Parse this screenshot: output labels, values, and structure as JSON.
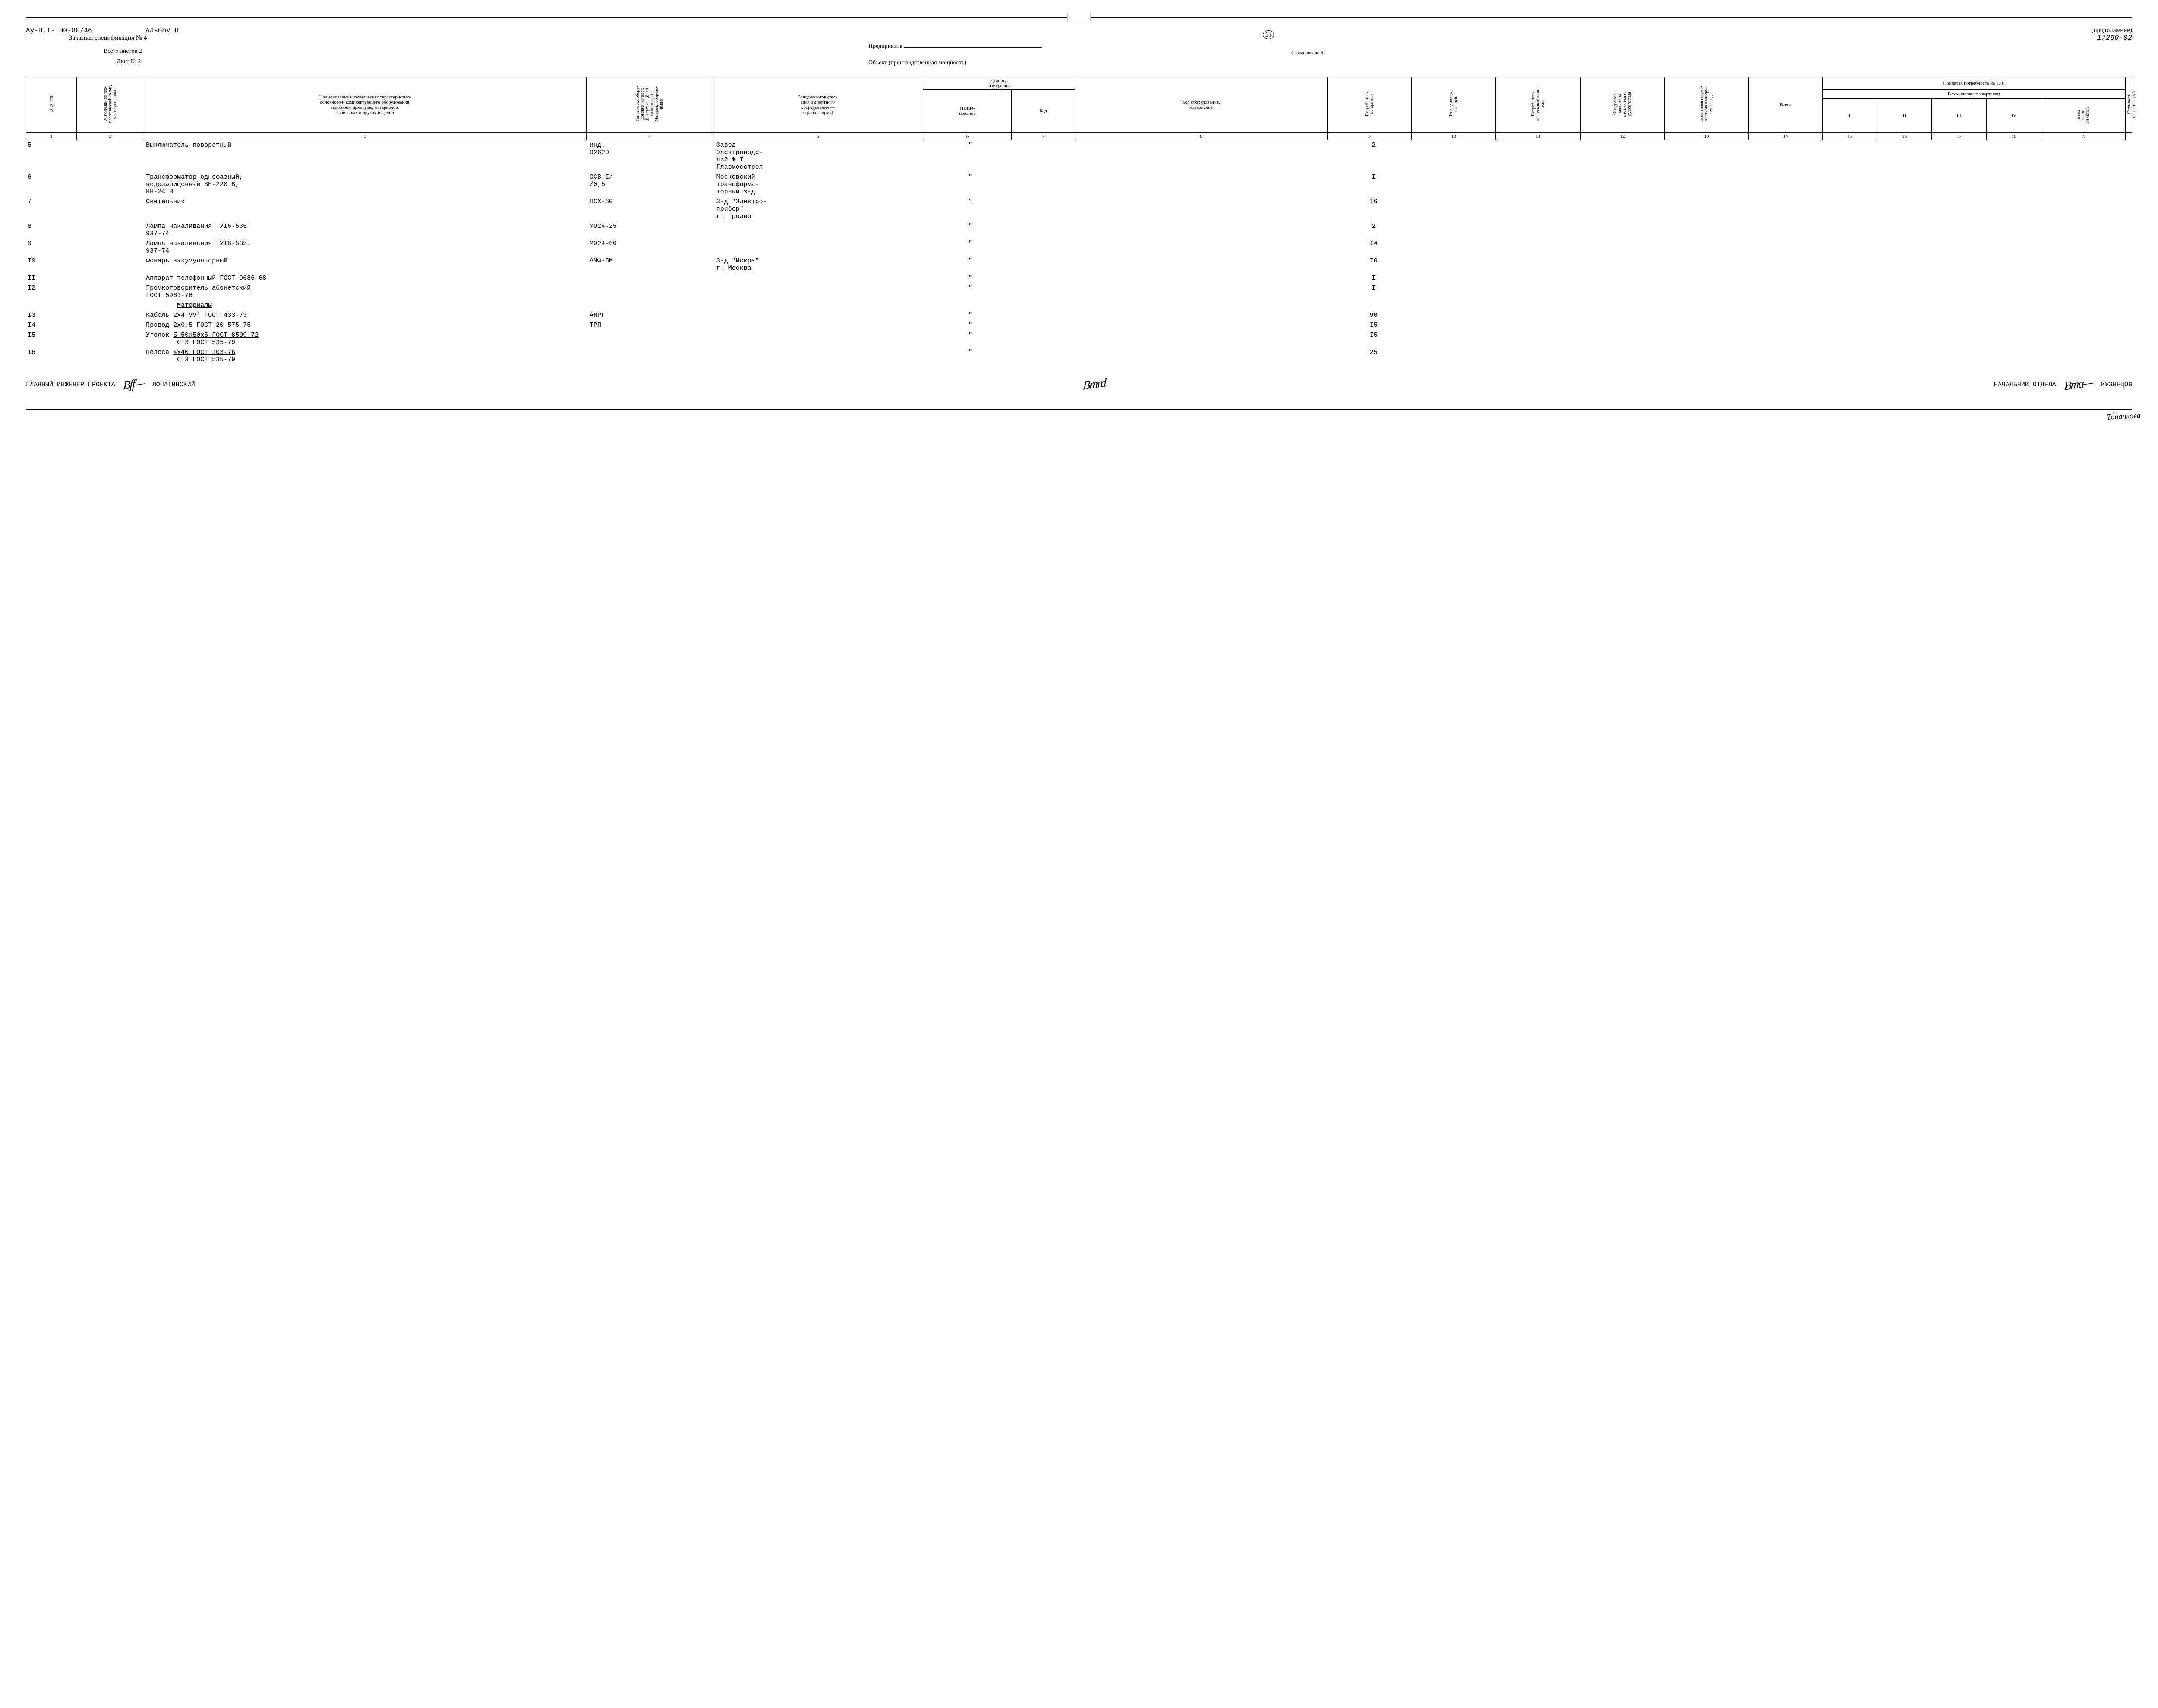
{
  "header": {
    "doc_code": "Ау-П.Ш-I00-80/46",
    "album": "Альбом П",
    "spec_title": "Заказная спецификация № 4",
    "total_sheets": "Всего листов 2",
    "sheet_no": "Лист № 2",
    "page_num": "13",
    "enterprise_label": "Предприятие",
    "enterprise_under": "(наименование)",
    "object_label": "Объект (производственная мощность)",
    "continuation": "(продолжение)",
    "code_right": "17269-02"
  },
  "columns": {
    "c1": "№№ п/п",
    "c2": "№ позиции по тех-\nнологической схеме,\nместо установки",
    "c3": "Наименование и техническая характеристика\nосновного и комплектующего оборудования,\nприборов, арматуры, материалов,\nкабельных и других изделий",
    "c4": "Тип и марка обору-\nдования, каталог,\n№ чертежа, № оп-\nросного листа,\nМатериал оборудо-\nвания",
    "c5": "Завод-изготовитель\n(для импортного\nоборудования —\nстрана, фирма)",
    "c6_group": "Единица\nизмерения",
    "c6": "Наиме-\nнование",
    "c7": "Код",
    "c8": "Код оборудования,\nматериалов",
    "c9": "Потребность\nпо проекту",
    "c10": "Цена единицы,\nтыс. руб.",
    "c11": "Потребность\nна пусковой комп-\nлекс",
    "c12_group": "Ожидаемое\nналичие на\nначало плани-\nруемого года",
    "c12_sub": "в том\nчисле\nна складе",
    "c13": "Заявленная потреб-\nность на планиру-\nемый год",
    "c14": "Всего",
    "quarters_title": "Принятая потребность на 19   г.",
    "quarters_sub": "В том числе по кварталам",
    "q1": "I",
    "q2": "II",
    "q3": "III",
    "q4": "IV",
    "c19": "Стоимость\nвсего, тыс. руб."
  },
  "colnums": [
    "1",
    "2",
    "3",
    "4",
    "5",
    "6",
    "7",
    "8",
    "9",
    "10",
    "11",
    "12",
    "13",
    "14",
    "15",
    "16",
    "17",
    "18",
    "19"
  ],
  "rows": [
    {
      "n": "5",
      "name": "Выключатель поворотный",
      "type": "инд.\n02620",
      "maker": "Завод\nЭлектроизде-\nлий № I\nГлавмосстроя",
      "unit": "\"",
      "qty": "2"
    },
    {
      "n": "6",
      "name": "Трансформатор однофазный,\nводозащищенный ВН-220 В,\nНН-24 В",
      "type": "ОСВ-I/\n/0,5",
      "maker": "Московский\nтрансформа-\nторный з-д",
      "unit": "\"",
      "qty": "I"
    },
    {
      "n": "7",
      "name": "Светильник",
      "type": "ПСХ-60",
      "maker": "З-д \"Электро-\nприбор\"\nг. Гродно",
      "unit": "\"",
      "qty": "I6"
    },
    {
      "n": "8",
      "name": "Лампа накаливания ТУI6-535\n937-74",
      "type": "МО24-25",
      "maker": "",
      "unit": "\"",
      "qty": "2"
    },
    {
      "n": "9",
      "name": "Лампа накаливания ТУI6-535.\n937-74",
      "type": "МО24-60",
      "maker": "",
      "unit": "\"",
      "qty": "I4"
    },
    {
      "n": "10",
      "num": "I0",
      "name": "Фонарь аккумуляторный",
      "type": "АМФ-8М",
      "maker": "З-д \"Искра\"\nг. Москва",
      "unit": "\"",
      "qty": "I0"
    },
    {
      "n": "11",
      "num": "II",
      "name": "Аппарат телефонный ГОСТ 9686-68",
      "type": "",
      "maker": "",
      "unit": "\"",
      "qty": "I"
    },
    {
      "n": "12",
      "num": "I2",
      "name": "Громкоговоритель абонетский\nГОСТ 596I-76",
      "type": "",
      "maker": "",
      "unit": "\"",
      "qty": "I"
    },
    {
      "section": true,
      "name": "Материалы"
    },
    {
      "n": "13",
      "num": "I3",
      "name": "Кабель 2х4 мм² ГОСТ 433-73",
      "type": "АНРГ",
      "maker": "",
      "unit": "\"",
      "qty": "90"
    },
    {
      "n": "14",
      "num": "I4",
      "name": "Провод 2х0,5 ГОСТ 20 575-75",
      "type": "ТРП",
      "maker": "",
      "unit": "\"",
      "qty": "I5"
    },
    {
      "n": "15",
      "num": "I5",
      "name_u": "Б-50х50х5 ГОСТ 8509-72",
      "name_pre": "Уголок ",
      "name_sub": "Ст3 ГОСТ 535-79",
      "type": "",
      "maker": "",
      "unit": "\"",
      "qty": "I5"
    },
    {
      "n": "16",
      "num": "I6",
      "name_u": "4х40 ГОСТ I03-76",
      "name_pre": "Полоса ",
      "name_sub": "Ст3 ГОСТ 535-79",
      "type": "",
      "maker": "",
      "unit": "\"",
      "qty": "25"
    }
  ],
  "signatures": {
    "left_title": "ГЛАВНЫЙ ИНЖЕНЕР ПРОЕКТА",
    "left_name": "ЛОПАТИНСКИЙ",
    "right_title": "НАЧАЛЬНИК ОТДЕЛА",
    "right_name": "КУЗНЕЦОВ",
    "bottom": "То́панкова"
  },
  "widths": {
    "c1": "2.4%",
    "c2": "3.2%",
    "c3": "21%",
    "c4": "6%",
    "c5": "10%",
    "c6": "4.2%",
    "c7": "3%",
    "c8": "12%",
    "c9": "4%",
    "c10": "4%",
    "c11": "4%",
    "c12": "4%",
    "c13": "4%",
    "c14": "3.5%",
    "c15": "2.6%",
    "c16": "2.6%",
    "c17": "2.6%",
    "c18": "2.6%",
    "c19": "4%"
  }
}
